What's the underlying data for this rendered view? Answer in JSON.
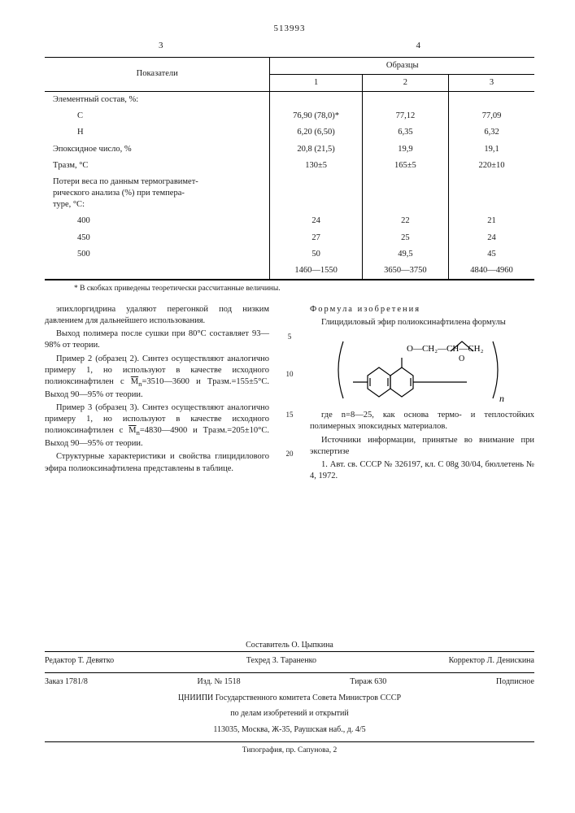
{
  "patent_number": "513993",
  "top_col_left": "3",
  "top_col_right": "4",
  "table": {
    "head_indicator": "Показатели",
    "head_samples": "Образцы",
    "sample_nums": [
      "1",
      "2",
      "3"
    ],
    "rows": [
      {
        "label": "Элементный состав, %:",
        "vals": [
          "",
          "",
          ""
        ],
        "indent": false
      },
      {
        "label": "C",
        "vals": [
          "76,90 (78,0)*",
          "77,12",
          "77,09"
        ],
        "indent": true
      },
      {
        "label": "H",
        "vals": [
          "6,20 (6,50)",
          "6,35",
          "6,32"
        ],
        "indent": true
      },
      {
        "label": "Эпоксидное число, %",
        "vals": [
          "20,8 (21,5)",
          "19,9",
          "19,1"
        ],
        "indent": false
      },
      {
        "label": "Tразм, °C",
        "vals": [
          "130±5",
          "165±5",
          "220±10"
        ],
        "indent": false
      },
      {
        "label": "Потери веса по данным термогравимет-\nрического анализа (%) при темпера-\nтуре, °C:",
        "vals": [
          "",
          "",
          ""
        ],
        "indent": false
      },
      {
        "label": "400",
        "vals": [
          "24",
          "22",
          "21"
        ],
        "indent": true
      },
      {
        "label": "450",
        "vals": [
          "27",
          "25",
          "24"
        ],
        "indent": true
      },
      {
        "label": "500",
        "vals": [
          "50",
          "49,5",
          "45"
        ],
        "indent": true
      },
      {
        "label": "",
        "vals": [
          "1460—1550",
          "3650—3750",
          "4840—4960"
        ],
        "indent": true
      }
    ],
    "footnote": "* В скобках приведены теоретически рассчитанные величины."
  },
  "left_col": {
    "p1": "эпихлоргидрина удаляют перегонкой под низ­ким давлением для дальнейшего использо­вания.",
    "p2": "Выход полимера после сушки при 80°C со­ставляет 93—98% от теории.",
    "p3a": "Пример 2 (образец 2). Синтез осущест­вляют аналогично примеру 1, но используют в качестве исходного полиоксинафтилен с ",
    "p3b": "=3510—3600 и Tразм.=155±5°C. Выход 90—95% от теории.",
    "p4a": "Пример 3 (образец 3). Синтез осущест­вляют аналогично примеру 1, но используют в качестве исходного полиоксинафтилен с ",
    "p4b": "=4830—4900 и Tразм.=205±10°C. Выход 90—95% от теории.",
    "p5": "Структурные характеристики и свойства глицидилового эфира полиоксинафтилена представлены в таблице."
  },
  "right_col": {
    "head": "Формула изобретения",
    "lead": "Глицидиловый эфир полиоксинафтилена формулы",
    "p_after": "где n=8—25, как основа термо- и тепло­стойких полимерных эпоксидных материалов.",
    "src1": "Источники информации, принятые во внима­ние при экспертизе",
    "src2": "1. Авт. св. СССР № 326197, кл. C 08g 30/04, бюллетень № 4, 1972."
  },
  "linenos": {
    "n5": "5",
    "n10": "10",
    "n15": "15",
    "n20": "20"
  },
  "formula_labels": {
    "top": "O—CH₂—CH—CH₂",
    "oxy": "O"
  },
  "imprint": {
    "compiler": "Составитель О. Цыпкина",
    "editor": "Редактор Т. Девятко",
    "tech": "Техред З. Тараненко",
    "corrector": "Корректор Л. Денискина",
    "order": "Заказ 1781/8",
    "izd": "Изд. № 1518",
    "tirazh": "Тираж 630",
    "sign": "Подписное",
    "org1": "ЦНИИПИ Государственного комитета Совета Министров СССР",
    "org2": "по делам изобретений и открытий",
    "addr": "113035, Москва, Ж-35, Раушская наб., д. 4/5",
    "printer": "Типография, пр. Сапунова, 2"
  }
}
